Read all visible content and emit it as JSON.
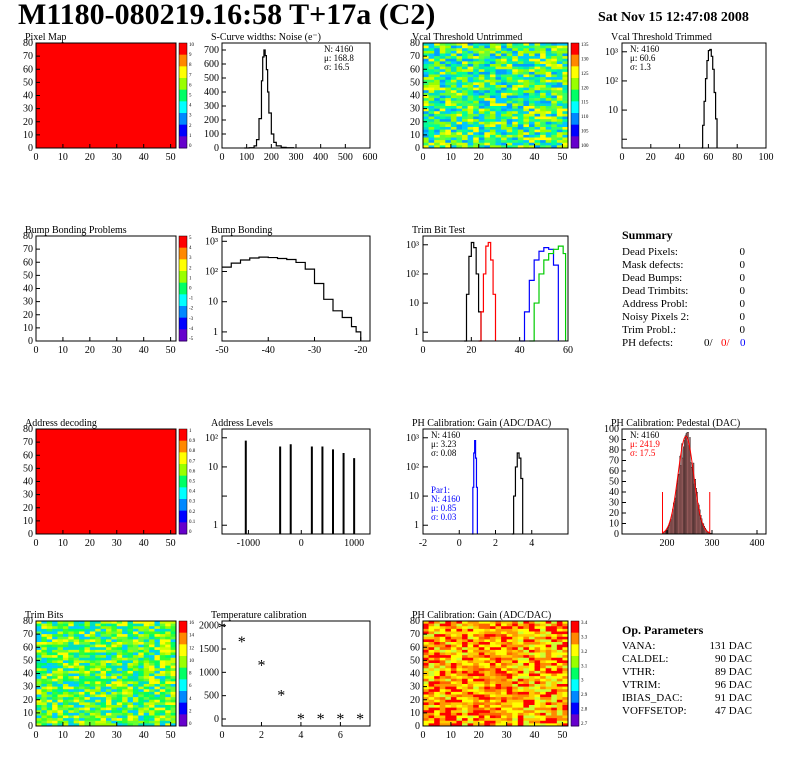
{
  "header": {
    "title": "M1180-080219.16:58 T+17a (C2)",
    "date": "Sat Nov 15 12:47:08 2008"
  },
  "colors": {
    "red": "#ff0000",
    "blue": "#0000ff",
    "green": "#00cc00",
    "hist_fill": "#ff9999"
  },
  "chart_data": [
    {
      "id": "pixel_map",
      "type": "heatmap",
      "title": "Pixel Map",
      "xlim": [
        0,
        52
      ],
      "ylim": [
        0,
        80
      ],
      "xticks": [
        0,
        10,
        20,
        30,
        40,
        50
      ],
      "yticks": [
        0,
        10,
        20,
        30,
        40,
        50,
        60,
        70,
        80
      ],
      "fill": "uniform-red",
      "palette_ticks": [
        "10",
        "9",
        "8",
        "7",
        "6",
        "5",
        "4",
        "3",
        "2",
        "1",
        "0"
      ]
    },
    {
      "id": "scurve_noise",
      "type": "line",
      "title": "S-Curve widths: Noise (e⁻)",
      "xlim": [
        0,
        600
      ],
      "ylim": [
        0,
        750
      ],
      "xticks": [
        0,
        100,
        200,
        300,
        400,
        500,
        600
      ],
      "yticks": [
        0,
        100,
        200,
        300,
        400,
        500,
        600,
        700
      ],
      "stats": [
        "N: 4160",
        "μ: 168.8",
        "σ: 16.5"
      ],
      "x": [
        90,
        110,
        130,
        140,
        150,
        160,
        165,
        170,
        175,
        180,
        185,
        190,
        200,
        210,
        220,
        240,
        260,
        290
      ],
      "y": [
        0,
        2,
        15,
        60,
        210,
        480,
        650,
        700,
        660,
        560,
        400,
        250,
        100,
        40,
        15,
        5,
        2,
        0
      ]
    },
    {
      "id": "vcal_untrimmed",
      "type": "heatmap",
      "title": "Vcal Threshold Untrimmed",
      "xlim": [
        0,
        52
      ],
      "ylim": [
        0,
        80
      ],
      "xticks": [
        0,
        10,
        20,
        30,
        40,
        50
      ],
      "yticks": [
        0,
        10,
        20,
        30,
        40,
        50,
        60,
        70,
        80
      ],
      "fill": "noise-blue-green-yellow",
      "palette_ticks": [
        "135",
        "130",
        "125",
        "120",
        "115",
        "110",
        "105",
        "100"
      ]
    },
    {
      "id": "vcal_trimmed",
      "type": "line",
      "title": "Vcal Threshold Trimmed",
      "yscale": "log",
      "xlim": [
        0,
        100
      ],
      "ylim": [
        0.5,
        2000
      ],
      "xticks": [
        0,
        20,
        40,
        60,
        80,
        100
      ],
      "yticks": [
        "10",
        "10²",
        "10³"
      ],
      "stats": [
        "N: 4160",
        "μ: 60.6",
        "σ:  1.3"
      ],
      "x": [
        55,
        56,
        57,
        58,
        59,
        60,
        61,
        62,
        63,
        64,
        65,
        66
      ],
      "y": [
        0.5,
        3,
        20,
        120,
        500,
        1100,
        1200,
        700,
        250,
        40,
        5,
        0.5
      ]
    },
    {
      "id": "bump_problems",
      "type": "heatmap",
      "title": "Bump Bonding Problems",
      "xlim": [
        0,
        52
      ],
      "ylim": [
        0,
        80
      ],
      "xticks": [
        0,
        10,
        20,
        30,
        40,
        50
      ],
      "yticks": [
        0,
        10,
        20,
        30,
        40,
        50,
        60,
        70,
        80
      ],
      "fill": "empty",
      "palette_ticks": [
        "5",
        "4",
        "3",
        "2",
        "1",
        "0",
        "-1",
        "-2",
        "-3",
        "-4",
        "-5"
      ]
    },
    {
      "id": "bump_bonding",
      "type": "line",
      "title": "Bump Bonding",
      "yscale": "log",
      "xlim": [
        -50,
        -18
      ],
      "ylim": [
        0.5,
        1500
      ],
      "xticks": [
        -50,
        -40,
        -30,
        -20
      ],
      "yticks": [
        "1",
        "10",
        "10²",
        "10³"
      ],
      "x": [
        -50,
        -48,
        -46,
        -44,
        -42,
        -40,
        -38,
        -36,
        -34,
        -32,
        -30,
        -28,
        -26,
        -24,
        -22,
        -21,
        -20
      ],
      "y": [
        140,
        190,
        240,
        280,
        300,
        290,
        270,
        250,
        200,
        120,
        40,
        12,
        5,
        3,
        1.5,
        1,
        0.5
      ]
    },
    {
      "id": "trim_bit_test",
      "type": "line",
      "title": "Trim Bit Test",
      "yscale": "log",
      "xlim": [
        0,
        60
      ],
      "ylim": [
        0.5,
        2000
      ],
      "xticks": [
        0,
        20,
        40,
        60
      ],
      "yticks": [
        "1",
        "10",
        "10²",
        "10³"
      ],
      "series": [
        {
          "color": "#000000",
          "x": [
            17,
            18,
            19,
            20,
            21,
            22,
            23,
            24
          ],
          "y": [
            0.5,
            20,
            400,
            1200,
            800,
            100,
            5,
            0.5
          ]
        },
        {
          "color": "#ff0000",
          "x": [
            23,
            24,
            25,
            26,
            27,
            28,
            29,
            30
          ],
          "y": [
            0.5,
            5,
            100,
            900,
            1200,
            300,
            20,
            0.5
          ]
        },
        {
          "color": "#0000ff",
          "x": [
            40,
            42,
            44,
            46,
            48,
            50,
            52,
            54,
            56
          ],
          "y": [
            0.5,
            5,
            60,
            300,
            600,
            800,
            700,
            200,
            0.5
          ]
        },
        {
          "color": "#00cc00",
          "x": [
            44,
            46,
            48,
            50,
            52,
            54,
            56,
            58,
            59
          ],
          "y": [
            0.5,
            10,
            100,
            300,
            500,
            700,
            900,
            500,
            0.5
          ]
        }
      ]
    },
    {
      "id": "address_decoding",
      "type": "heatmap",
      "title": "Address decoding",
      "xlim": [
        0,
        52
      ],
      "ylim": [
        0,
        80
      ],
      "xticks": [
        0,
        10,
        20,
        30,
        40,
        50
      ],
      "yticks": [
        0,
        10,
        20,
        30,
        40,
        50,
        60,
        70,
        80
      ],
      "fill": "uniform-red",
      "palette_ticks": [
        "1",
        "0.9",
        "0.8",
        "0.7",
        "0.6",
        "0.5",
        "0.4",
        "0.3",
        "0.2",
        "0.1",
        "0"
      ]
    },
    {
      "id": "address_levels",
      "type": "bar",
      "title": "Address Levels",
      "yscale": "log",
      "xlim": [
        -1500,
        1300
      ],
      "ylim": [
        0.5,
        2000
      ],
      "xticks": [
        -1000,
        0,
        1000
      ],
      "yticks": [
        "1",
        "10",
        "10²"
      ],
      "x": [
        -1050,
        -400,
        -200,
        200,
        400,
        600,
        800,
        1000
      ],
      "y": [
        800,
        500,
        600,
        500,
        500,
        400,
        300,
        200
      ]
    },
    {
      "id": "ph_gain",
      "type": "line",
      "title": "PH Calibration: Gain (ADC/DAC)",
      "yscale": "log",
      "xlim": [
        -2,
        6
      ],
      "ylim": [
        0.5,
        2000
      ],
      "xticks": [
        -2,
        0,
        2,
        4
      ],
      "yticks": [
        "1",
        "10",
        "10²",
        "10³"
      ],
      "stats": [
        "N: 4160",
        "μ: 3.23",
        "σ: 0.08"
      ],
      "stats2": [
        "Par1:",
        "N: 4160",
        "μ: 0.85",
        "σ: 0.03"
      ],
      "series": [
        {
          "color": "#000000",
          "x": [
            2.9,
            3.0,
            3.1,
            3.2,
            3.3,
            3.4,
            3.5
          ],
          "y": [
            0.5,
            10,
            100,
            300,
            200,
            40,
            0.5
          ]
        },
        {
          "color": "#0000ff",
          "x": [
            0.7,
            0.75,
            0.8,
            0.85,
            0.9,
            0.95,
            1.0
          ],
          "y": [
            0.5,
            20,
            300,
            800,
            200,
            20,
            0.5
          ]
        }
      ]
    },
    {
      "id": "ph_pedestal",
      "type": "bar",
      "title": "PH Calibration: Pedestal (DAC)",
      "xlim": [
        100,
        420
      ],
      "ylim": [
        0,
        100
      ],
      "xticks": [
        200,
        300,
        400
      ],
      "yticks": [
        0,
        10,
        20,
        30,
        40,
        50,
        60,
        70,
        80,
        90,
        100
      ],
      "stats": [
        "N: 4160",
        "μ: 241.9",
        "σ: 17.5"
      ],
      "fit_center": 241.9,
      "fit_sigma": 17.5,
      "fit_peak": 93,
      "fit_range": [
        190,
        295
      ]
    },
    {
      "id": "trim_bits",
      "type": "heatmap",
      "title": "Trim Bits",
      "xlim": [
        0,
        52
      ],
      "ylim": [
        0,
        80
      ],
      "xticks": [
        0,
        10,
        20,
        30,
        40,
        50
      ],
      "yticks": [
        0,
        10,
        20,
        30,
        40,
        50,
        60,
        70,
        80
      ],
      "fill": "noise-green-yellow",
      "palette_ticks": [
        "16",
        "14",
        "12",
        "10",
        "8",
        "6",
        "4",
        "2",
        "0"
      ]
    },
    {
      "id": "temperature_calibration",
      "type": "scatter",
      "title": "Temperature calibration",
      "xlim": [
        0,
        7.5
      ],
      "ylim": [
        -150,
        2100
      ],
      "xticks": [
        0,
        2,
        4,
        6
      ],
      "yticks": [
        0,
        500,
        1000,
        1500,
        2000
      ],
      "x": [
        0,
        1,
        2,
        3,
        4,
        5,
        6,
        7
      ],
      "y": [
        1950,
        1650,
        1150,
        500,
        0,
        0,
        0,
        0
      ]
    },
    {
      "id": "ph_gain_map",
      "type": "heatmap",
      "title": "PH Calibration: Gain (ADC/DAC)",
      "xlim": [
        0,
        52
      ],
      "ylim": [
        0,
        80
      ],
      "xticks": [
        0,
        10,
        20,
        30,
        40,
        50
      ],
      "yticks": [
        0,
        10,
        20,
        30,
        40,
        50,
        60,
        70,
        80
      ],
      "fill": "noise-red-orange-yellow",
      "palette_ticks": [
        "3.4",
        "3.3",
        "3.2",
        "3.1",
        "3",
        "2.9",
        "2.8",
        "2.7"
      ]
    }
  ],
  "summary": {
    "title": "Summary",
    "rows": [
      {
        "label": "Dead Pixels:",
        "value": "0"
      },
      {
        "label": "Mask defects:",
        "value": "0"
      },
      {
        "label": "Dead Bumps:",
        "value": "0"
      },
      {
        "label": "Dead Trimbits:",
        "value": "0"
      },
      {
        "label": "Address Probl:",
        "value": "0"
      },
      {
        "label": "Noisy Pixels 2:",
        "value": "0"
      },
      {
        "label": "Trim Probl.:",
        "value": "0"
      }
    ],
    "ph_label": "PH defects:",
    "ph_values": [
      "0/",
      "0/",
      "0"
    ]
  },
  "op_params": {
    "title": "Op. Parameters",
    "rows": [
      {
        "label": "VANA:",
        "value": "131 DAC"
      },
      {
        "label": "CALDEL:",
        "value": "90 DAC"
      },
      {
        "label": "VTHR:",
        "value": "89 DAC"
      },
      {
        "label": "VTRIM:",
        "value": "96 DAC"
      },
      {
        "label": "IBIAS_DAC:",
        "value": "91 DAC"
      },
      {
        "label": "VOFFSETOP:",
        "value": "47 DAC"
      }
    ]
  }
}
